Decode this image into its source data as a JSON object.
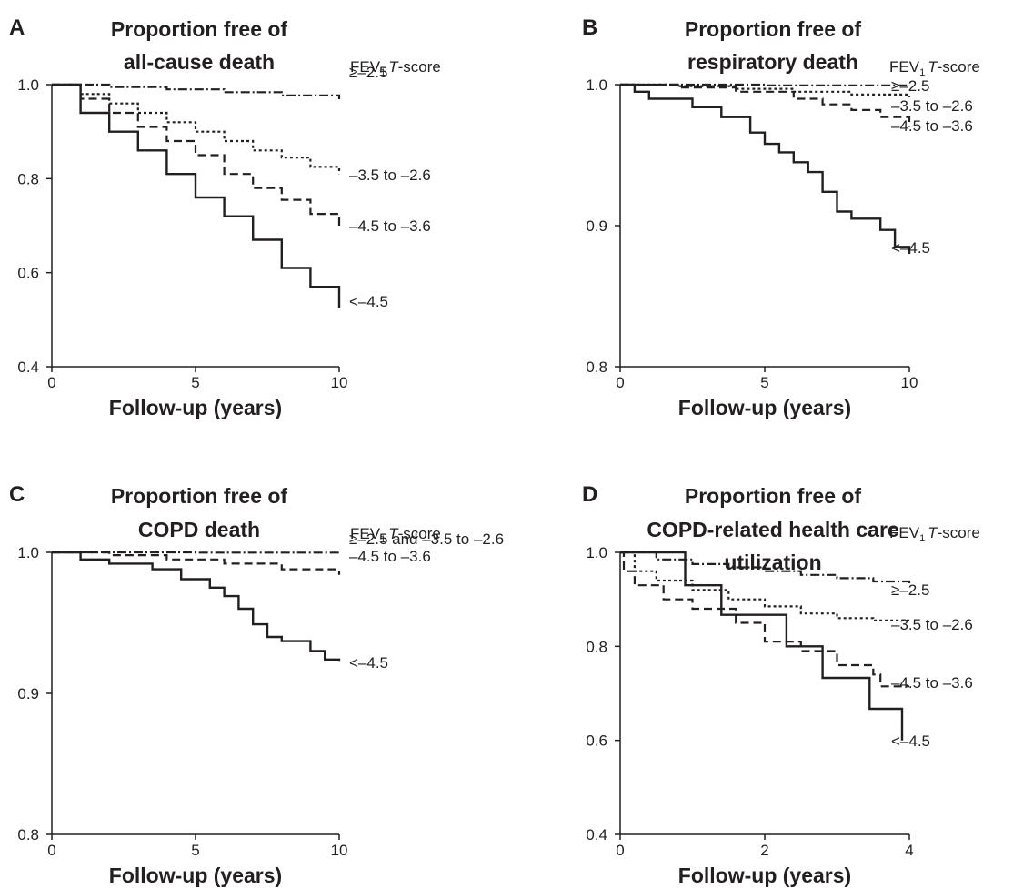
{
  "legend_title_prefix": "FEV",
  "legend_title_sub": "1",
  "legend_title_italic": "T",
  "legend_title_suffix": "-score",
  "chart_data": [
    {
      "panel": "A",
      "type": "line",
      "title": [
        "Proportion free of",
        "all-cause death"
      ],
      "xlabel": "Follow-up (years)",
      "ylabel": "",
      "xlim": [
        0,
        10
      ],
      "ylim": [
        0.4,
        1.0
      ],
      "xticks": [
        0,
        5,
        10
      ],
      "yticks": [
        0.4,
        0.6,
        0.8,
        1.0
      ],
      "series": [
        {
          "name": "≥–2.5",
          "style": "dashdot",
          "x": [
            0,
            2,
            4,
            6,
            8,
            10
          ],
          "y": [
            1.0,
            0.995,
            0.99,
            0.984,
            0.977,
            0.969
          ]
        },
        {
          "name": "–3.5 to –2.6",
          "style": "dotted",
          "x": [
            0,
            1,
            2,
            3,
            4,
            5,
            6,
            7,
            8,
            9,
            10
          ],
          "y": [
            1.0,
            0.98,
            0.96,
            0.94,
            0.92,
            0.9,
            0.88,
            0.86,
            0.845,
            0.825,
            0.81
          ]
        },
        {
          "name": "–4.5 to –3.6",
          "style": "dashed",
          "x": [
            0,
            1,
            2,
            3,
            4,
            5,
            6,
            7,
            8,
            9,
            10
          ],
          "y": [
            1.0,
            0.97,
            0.94,
            0.91,
            0.88,
            0.85,
            0.81,
            0.78,
            0.755,
            0.725,
            0.695
          ]
        },
        {
          "name": "<–4.5",
          "style": "solid",
          "x": [
            0,
            1,
            2,
            3,
            4,
            5,
            6,
            7,
            8,
            9,
            10
          ],
          "y": [
            1.0,
            0.94,
            0.9,
            0.86,
            0.81,
            0.76,
            0.72,
            0.67,
            0.61,
            0.57,
            0.525
          ]
        }
      ]
    },
    {
      "panel": "B",
      "type": "line",
      "title": [
        "Proportion free of",
        "respiratory death"
      ],
      "xlabel": "Follow-up (years)",
      "ylabel": "",
      "xlim": [
        0,
        10
      ],
      "ylim": [
        0.8,
        1.0
      ],
      "xticks": [
        0,
        5,
        10
      ],
      "yticks": [
        0.8,
        0.9,
        1.0
      ],
      "series": [
        {
          "name": "≥–2.5",
          "style": "dashdot",
          "x": [
            0,
            5,
            10
          ],
          "y": [
            1.0,
            0.9995,
            0.999
          ]
        },
        {
          "name": "–3.5 to –2.6",
          "style": "dotted",
          "x": [
            0,
            2,
            4,
            6,
            8,
            10
          ],
          "y": [
            1.0,
            0.999,
            0.997,
            0.995,
            0.993,
            0.991
          ]
        },
        {
          "name": "–4.5 to –3.6",
          "style": "dashed",
          "x": [
            0,
            2,
            4,
            6,
            7,
            8,
            9,
            10
          ],
          "y": [
            1.0,
            0.998,
            0.995,
            0.99,
            0.986,
            0.982,
            0.977,
            0.97
          ]
        },
        {
          "name": "<–4.5",
          "style": "solid",
          "x": [
            0,
            0.5,
            1,
            1.5,
            2.5,
            3.5,
            4.5,
            5,
            5.5,
            6,
            6.5,
            7,
            7.5,
            8,
            9,
            9.5,
            10
          ],
          "y": [
            1.0,
            0.995,
            0.99,
            0.99,
            0.984,
            0.977,
            0.966,
            0.958,
            0.952,
            0.945,
            0.938,
            0.924,
            0.91,
            0.905,
            0.897,
            0.885,
            0.88
          ]
        }
      ]
    },
    {
      "panel": "C",
      "type": "line",
      "title": [
        "Proportion free of",
        "COPD death"
      ],
      "xlabel": "Follow-up (years)",
      "ylabel": "",
      "xlim": [
        0,
        10
      ],
      "ylim": [
        0.8,
        1.0
      ],
      "xticks": [
        0,
        5,
        10
      ],
      "yticks": [
        0.8,
        0.9,
        1.0
      ],
      "series": [
        {
          "name": "≥–2.5 and –3.5 to –2.6",
          "style": "dashdot",
          "x": [
            0,
            5,
            10
          ],
          "y": [
            1.0,
            0.9998,
            0.9995
          ]
        },
        {
          "name": "–4.5 to –3.6",
          "style": "dashed",
          "x": [
            0,
            2,
            4,
            6,
            8,
            10
          ],
          "y": [
            1.0,
            0.998,
            0.995,
            0.992,
            0.988,
            0.984
          ]
        },
        {
          "name": "<–4.5",
          "style": "solid",
          "x": [
            0,
            1,
            2,
            3.5,
            4.5,
            5.5,
            6,
            6.5,
            7,
            7.5,
            8,
            9,
            9.5,
            10
          ],
          "y": [
            1.0,
            0.995,
            0.992,
            0.988,
            0.981,
            0.975,
            0.969,
            0.96,
            0.949,
            0.94,
            0.937,
            0.93,
            0.924,
            0.923
          ]
        }
      ]
    },
    {
      "panel": "D",
      "type": "line",
      "title": [
        "Proportion free of",
        "COPD-related health care",
        "utilization"
      ],
      "xlabel": "Follow-up (years)",
      "ylabel": "",
      "xlim": [
        0,
        4
      ],
      "ylim": [
        0.4,
        1.0
      ],
      "xticks": [
        0,
        2,
        4
      ],
      "yticks": [
        0.4,
        0.6,
        0.8,
        1.0
      ],
      "series": [
        {
          "name": "≥–2.5",
          "style": "dashdot",
          "x": [
            0,
            0.5,
            1,
            1.5,
            2,
            2.5,
            3,
            3.5,
            4
          ],
          "y": [
            1.0,
            0.985,
            0.975,
            0.968,
            0.96,
            0.952,
            0.945,
            0.938,
            0.93
          ]
        },
        {
          "name": "–3.5 to –2.6",
          "style": "dotted",
          "x": [
            0,
            0.2,
            0.5,
            1,
            1.5,
            2,
            2.5,
            3,
            3.5,
            4
          ],
          "y": [
            1.0,
            0.96,
            0.94,
            0.92,
            0.9,
            0.885,
            0.87,
            0.86,
            0.855,
            0.855
          ]
        },
        {
          "name": "–4.5 to –3.6",
          "style": "dashed",
          "x": [
            0,
            0.05,
            0.2,
            0.6,
            1,
            1.6,
            2,
            2.5,
            3,
            3.5,
            3.6,
            4
          ],
          "y": [
            1.0,
            0.96,
            0.93,
            0.9,
            0.88,
            0.85,
            0.81,
            0.79,
            0.76,
            0.74,
            0.715,
            0.715
          ]
        },
        {
          "name": "<–4.5",
          "style": "solid",
          "x": [
            0,
            0.8,
            0.9,
            1.4,
            2.3,
            2.8,
            3.45,
            3.9
          ],
          "y": [
            1.0,
            1.0,
            0.93,
            0.867,
            0.8,
            0.733,
            0.667,
            0.6
          ]
        }
      ]
    }
  ]
}
